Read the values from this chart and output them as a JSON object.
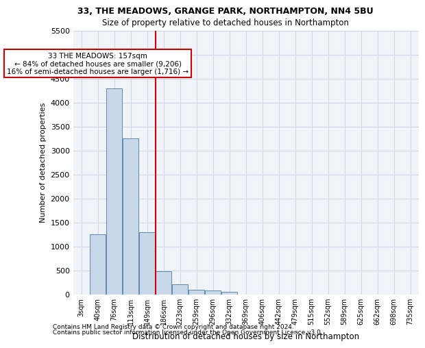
{
  "title_line1": "33, THE MEADOWS, GRANGE PARK, NORTHAMPTON, NN4 5BU",
  "title_line2": "Size of property relative to detached houses in Northampton",
  "xlabel": "Distribution of detached houses by size in Northampton",
  "ylabel": "Number of detached properties",
  "footer_line1": "Contains HM Land Registry data © Crown copyright and database right 2024.",
  "footer_line2": "Contains public sector information licensed under the Open Government Licence v3.0.",
  "annotation_line1": "33 THE MEADOWS: 157sqm",
  "annotation_line2": "← 84% of detached houses are smaller (9,206)",
  "annotation_line3": "16% of semi-detached houses are larger (1,716) →",
  "property_size": 157,
  "bar_color": "#c8d8e8",
  "bar_edge_color": "#5a8ab0",
  "vline_color": "#cc0000",
  "annotation_box_color": "#cc0000",
  "grid_color": "#d0d8e8",
  "background_color": "#f0f4f8",
  "categories": [
    "3sqm",
    "40sqm",
    "76sqm",
    "113sqm",
    "149sqm",
    "186sqm",
    "223sqm",
    "259sqm",
    "296sqm",
    "332sqm",
    "369sqm",
    "406sqm",
    "442sqm",
    "479sqm",
    "515sqm",
    "552sqm",
    "589sqm",
    "625sqm",
    "662sqm",
    "698sqm",
    "735sqm"
  ],
  "values": [
    0,
    1250,
    4300,
    3250,
    1300,
    480,
    210,
    100,
    80,
    50,
    0,
    0,
    0,
    0,
    0,
    0,
    0,
    0,
    0,
    0,
    0
  ],
  "ylim": [
    0,
    5500
  ],
  "yticks": [
    0,
    500,
    1000,
    1500,
    2000,
    2500,
    3000,
    3500,
    4000,
    4500,
    5000,
    5500
  ],
  "vline_x_index": 4.5
}
